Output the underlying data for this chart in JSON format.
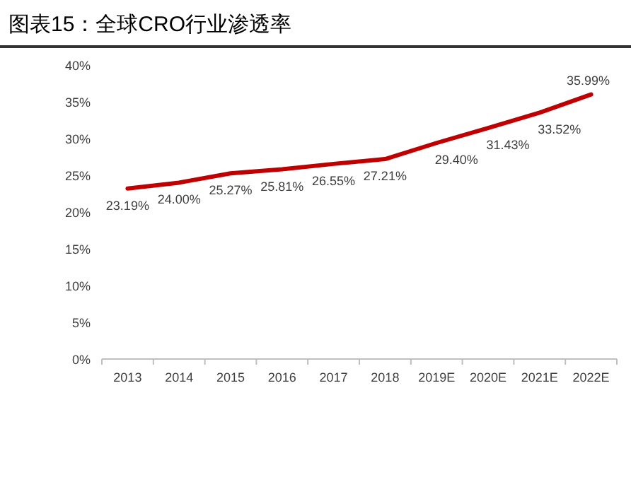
{
  "chart_data": {
    "type": "line",
    "title": "图表15：全球CRO行业渗透率",
    "categories": [
      "2013",
      "2014",
      "2015",
      "2016",
      "2017",
      "2018",
      "2019E",
      "2020E",
      "2021E",
      "2022E"
    ],
    "values": [
      23.19,
      24.0,
      25.27,
      25.81,
      26.55,
      27.21,
      29.4,
      31.43,
      33.52,
      35.99
    ],
    "value_labels": [
      "23.19%",
      "24.00%",
      "25.27%",
      "25.81%",
      "26.55%",
      "27.21%",
      "29.40%",
      "31.43%",
      "33.52%",
      "35.99%"
    ],
    "color": "#c00000",
    "ylim": [
      0,
      40
    ],
    "yticks": [
      {
        "value": 0,
        "label": "0%"
      },
      {
        "value": 5,
        "label": "5%"
      },
      {
        "value": 10,
        "label": "10%"
      },
      {
        "value": 15,
        "label": "15%"
      },
      {
        "value": 20,
        "label": "20%"
      },
      {
        "value": 25,
        "label": "25%"
      },
      {
        "value": 30,
        "label": "30%"
      },
      {
        "value": 35,
        "label": "35%"
      },
      {
        "value": 40,
        "label": "40%"
      }
    ],
    "line_style": "solid"
  }
}
